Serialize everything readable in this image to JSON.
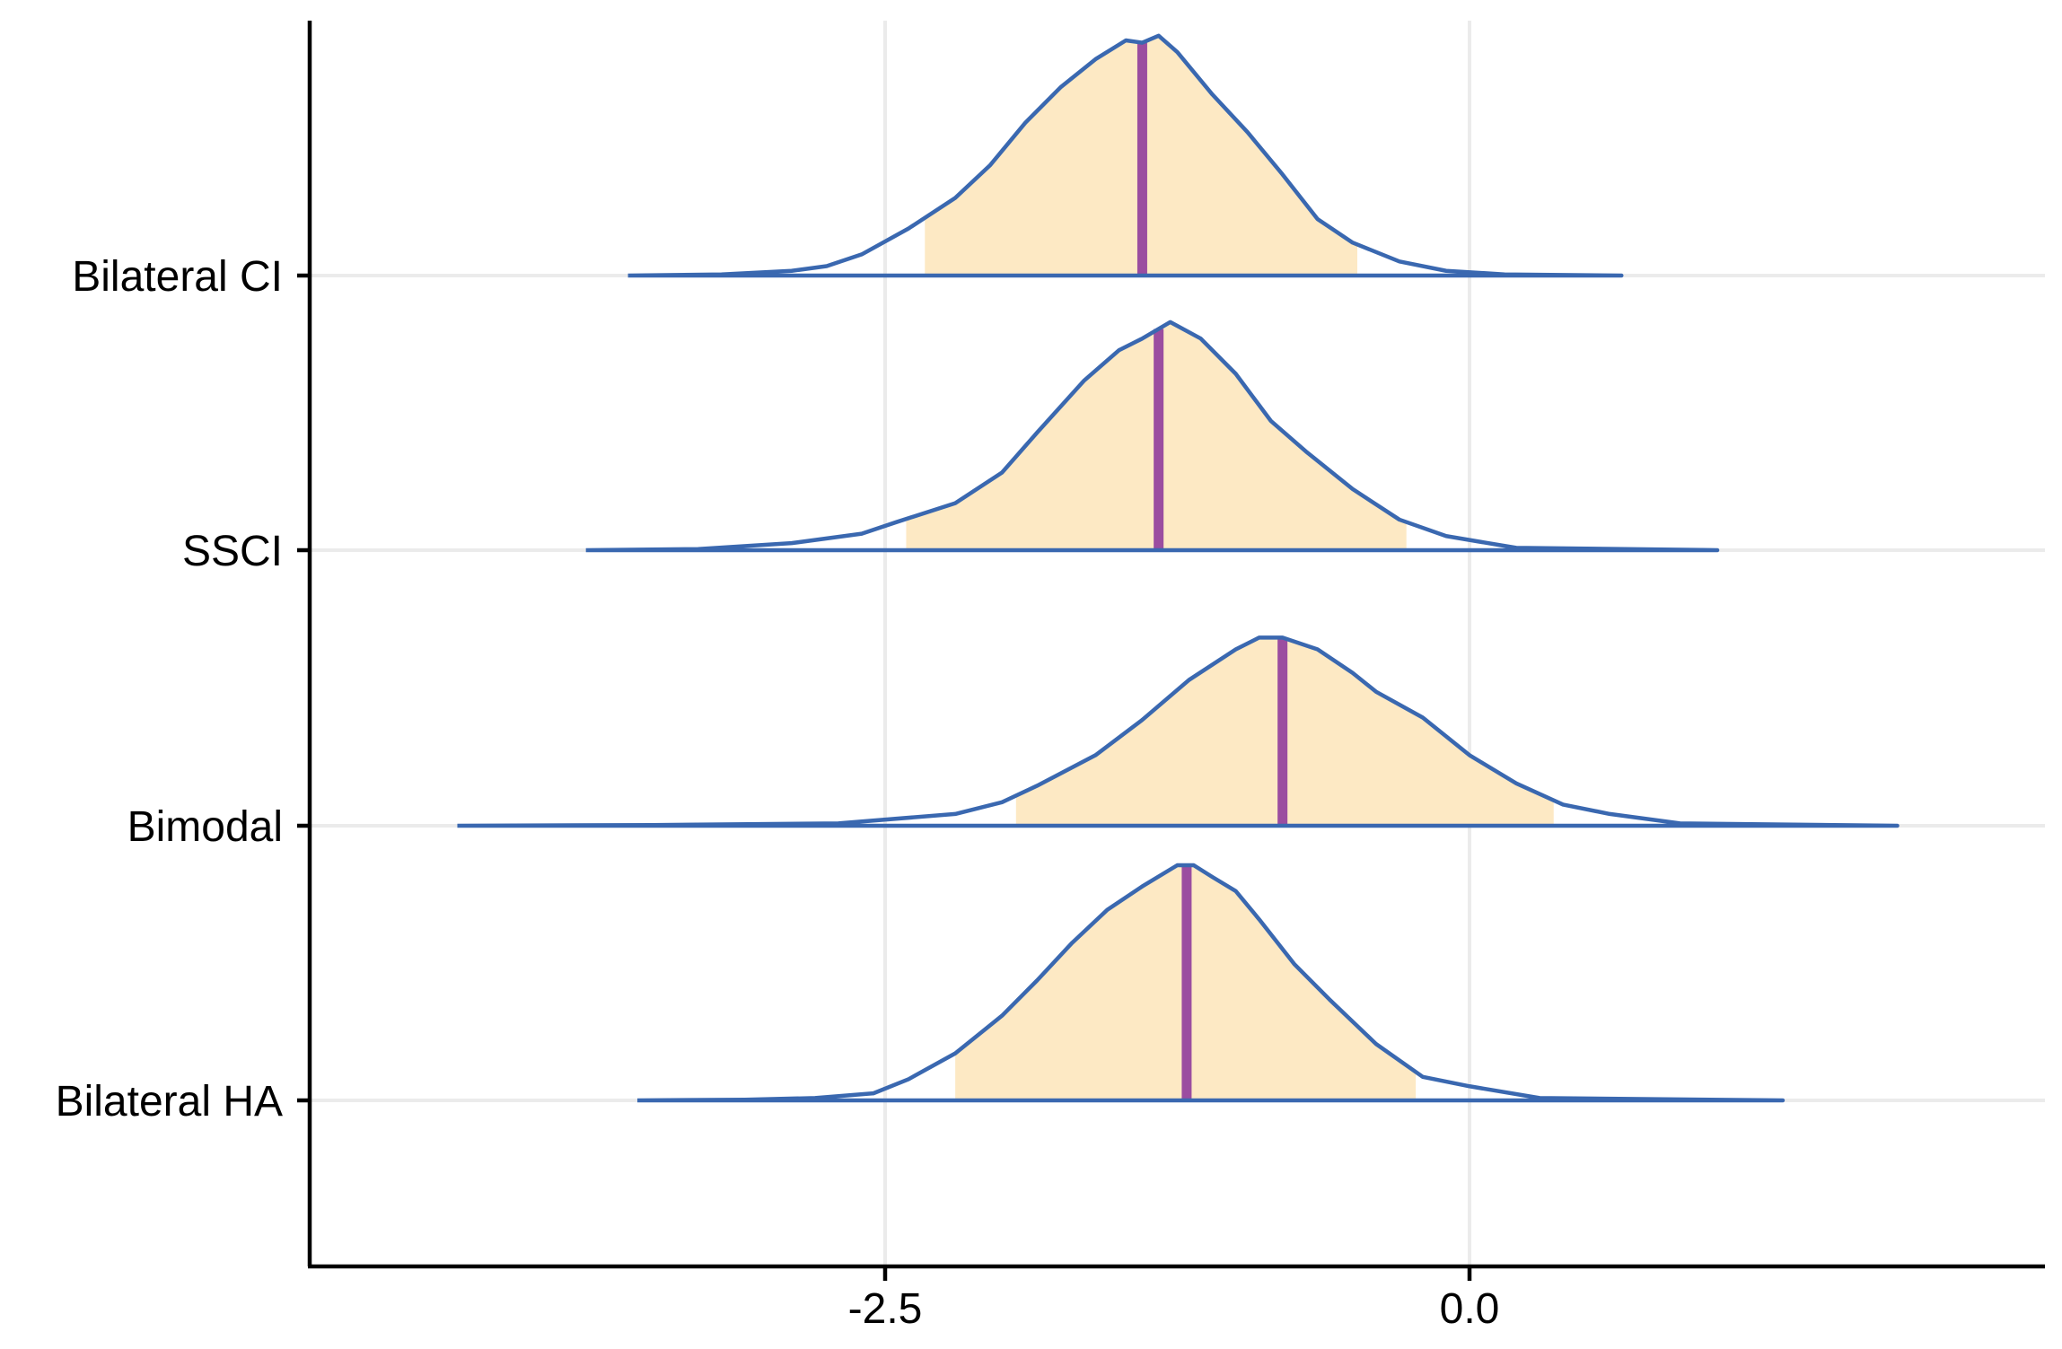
{
  "chart_data": {
    "type": "ridgeline",
    "title": "",
    "xlabel": "",
    "ylabel": "",
    "xlim": [
      -4.9,
      2.45
    ],
    "x_ticks": [
      {
        "value": -2.5,
        "label": "-2.5"
      },
      {
        "value": 0.0,
        "label": "0.0"
      }
    ],
    "grid": true,
    "legend": "none",
    "colors": {
      "density_line": "#3a68b0",
      "interval_fill": "#fde9c4",
      "median_line": "#9b4da0",
      "gridline": "#ebebeb",
      "axis": "#000000"
    },
    "series": [
      {
        "category": "Bilateral CI",
        "median": -1.4,
        "interval": [
          -2.33,
          -0.48
        ],
        "density_points": [
          [
            -3.6,
            0.0
          ],
          [
            -3.2,
            0.005
          ],
          [
            -2.9,
            0.02
          ],
          [
            -2.75,
            0.04
          ],
          [
            -2.6,
            0.09
          ],
          [
            -2.4,
            0.2
          ],
          [
            -2.2,
            0.33
          ],
          [
            -2.05,
            0.47
          ],
          [
            -1.9,
            0.65
          ],
          [
            -1.75,
            0.8
          ],
          [
            -1.6,
            0.92
          ],
          [
            -1.47,
            1.0
          ],
          [
            -1.4,
            0.99
          ],
          [
            -1.33,
            1.02
          ],
          [
            -1.25,
            0.95
          ],
          [
            -1.1,
            0.77
          ],
          [
            -0.95,
            0.61
          ],
          [
            -0.8,
            0.43
          ],
          [
            -0.65,
            0.24
          ],
          [
            -0.5,
            0.14
          ],
          [
            -0.3,
            0.06
          ],
          [
            -0.1,
            0.02
          ],
          [
            0.15,
            0.005
          ],
          [
            0.65,
            0.0
          ]
        ]
      },
      {
        "category": "SSCI",
        "median": -1.33,
        "interval": [
          -2.41,
          -0.27
        ],
        "density_points": [
          [
            -3.78,
            0.0
          ],
          [
            -3.3,
            0.005
          ],
          [
            -2.9,
            0.03
          ],
          [
            -2.6,
            0.07
          ],
          [
            -2.45,
            0.12
          ],
          [
            -2.2,
            0.2
          ],
          [
            -2.0,
            0.33
          ],
          [
            -1.85,
            0.5
          ],
          [
            -1.65,
            0.72
          ],
          [
            -1.5,
            0.85
          ],
          [
            -1.4,
            0.9
          ],
          [
            -1.28,
            0.97
          ],
          [
            -1.15,
            0.9
          ],
          [
            -1.0,
            0.75
          ],
          [
            -0.85,
            0.55
          ],
          [
            -0.7,
            0.42
          ],
          [
            -0.5,
            0.26
          ],
          [
            -0.3,
            0.13
          ],
          [
            -0.1,
            0.06
          ],
          [
            0.2,
            0.01
          ],
          [
            1.06,
            0.0
          ]
        ]
      },
      {
        "category": "Bimodal",
        "median": -0.8,
        "interval": [
          -1.94,
          0.36
        ],
        "density_points": [
          [
            -4.33,
            0.0
          ],
          [
            -3.5,
            0.003
          ],
          [
            -2.7,
            0.01
          ],
          [
            -2.2,
            0.05
          ],
          [
            -2.0,
            0.1
          ],
          [
            -1.85,
            0.17
          ],
          [
            -1.6,
            0.3
          ],
          [
            -1.4,
            0.45
          ],
          [
            -1.2,
            0.62
          ],
          [
            -1.0,
            0.75
          ],
          [
            -0.9,
            0.8
          ],
          [
            -0.8,
            0.8
          ],
          [
            -0.65,
            0.75
          ],
          [
            -0.5,
            0.65
          ],
          [
            -0.4,
            0.57
          ],
          [
            -0.2,
            0.46
          ],
          [
            0.0,
            0.3
          ],
          [
            0.2,
            0.18
          ],
          [
            0.4,
            0.09
          ],
          [
            0.6,
            0.05
          ],
          [
            0.9,
            0.01
          ],
          [
            1.83,
            0.0
          ]
        ]
      },
      {
        "category": "Bilateral HA",
        "median": -1.21,
        "interval": [
          -2.2,
          -0.23
        ],
        "density_points": [
          [
            -3.56,
            0.0
          ],
          [
            -3.1,
            0.003
          ],
          [
            -2.8,
            0.01
          ],
          [
            -2.55,
            0.03
          ],
          [
            -2.4,
            0.09
          ],
          [
            -2.2,
            0.2
          ],
          [
            -2.0,
            0.36
          ],
          [
            -1.85,
            0.51
          ],
          [
            -1.7,
            0.67
          ],
          [
            -1.55,
            0.81
          ],
          [
            -1.4,
            0.91
          ],
          [
            -1.25,
            1.0
          ],
          [
            -1.18,
            1.0
          ],
          [
            -1.1,
            0.95
          ],
          [
            -1.0,
            0.89
          ],
          [
            -0.9,
            0.77
          ],
          [
            -0.75,
            0.58
          ],
          [
            -0.6,
            0.43
          ],
          [
            -0.4,
            0.24
          ],
          [
            -0.2,
            0.1
          ],
          [
            0.0,
            0.06
          ],
          [
            0.3,
            0.01
          ],
          [
            1.34,
            0.0
          ]
        ]
      }
    ]
  }
}
